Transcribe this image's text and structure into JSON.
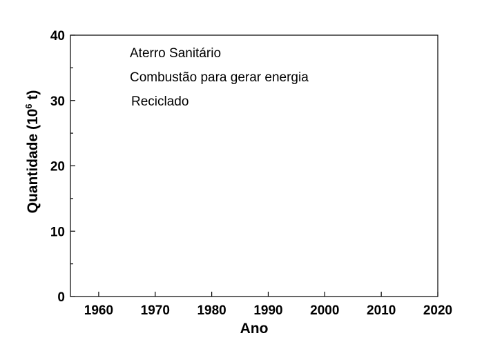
{
  "chart_data": {
    "type": "line",
    "title": "",
    "xlabel": "Ano",
    "ylabel_main": "Quantidade (10",
    "ylabel_sup": "6",
    "ylabel_tail": " t)",
    "xlim": [
      1955,
      2020
    ],
    "ylim": [
      0,
      40
    ],
    "xticks": [
      1960,
      1970,
      1980,
      1990,
      2000,
      2010,
      2020
    ],
    "xtick_labels": [
      "1960",
      "1970",
      "1980",
      "1990",
      "2000",
      "2010",
      "2020"
    ],
    "yticks": [
      0,
      10,
      20,
      30,
      40
    ],
    "ytick_labels": [
      "0",
      "10",
      "20",
      "30",
      "40"
    ],
    "y_minor_ticks": [
      5,
      15,
      25,
      35
    ],
    "grid": false,
    "legend_position": "top-left",
    "series": [
      {
        "name": "Aterro Sanitário",
        "x": [],
        "y": []
      },
      {
        "name": "Combustão para gerar energia",
        "x": [],
        "y": []
      },
      {
        "name": "Reciclado",
        "x": [],
        "y": []
      }
    ]
  }
}
